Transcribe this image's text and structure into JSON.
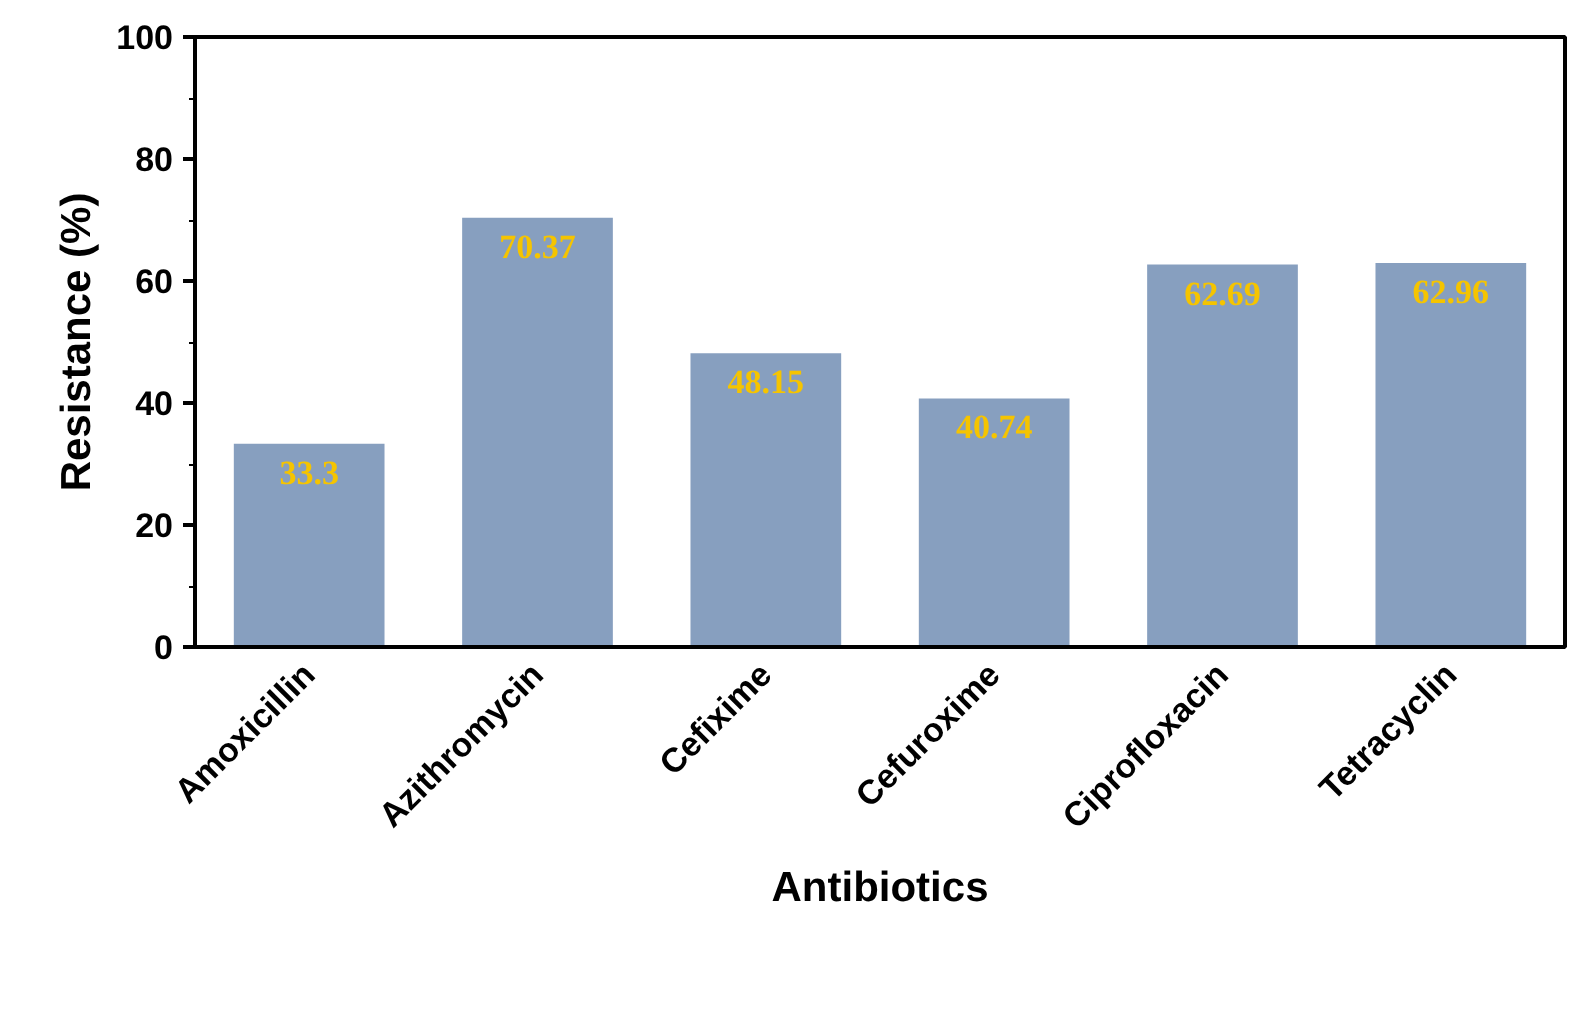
{
  "chart_data": {
    "type": "bar",
    "xlabel": "Antibiotics",
    "ylabel": "Resistance (%)",
    "categories": [
      "Amoxicillin",
      "Azithromycin",
      "Cefixime",
      "Cefuroxime",
      "Ciprofloxacin",
      "Tetracyclin"
    ],
    "values": [
      33.3,
      70.37,
      48.15,
      40.74,
      62.69,
      62.96
    ],
    "color": "#879fbf",
    "ylim": [
      0,
      100
    ],
    "yticks": [
      0,
      20,
      40,
      60,
      80,
      100
    ],
    "grid": false,
    "data_labels": true
  }
}
